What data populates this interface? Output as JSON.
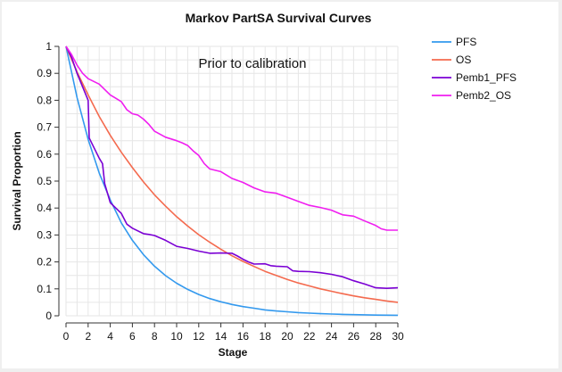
{
  "chart_data": {
    "type": "line",
    "title": "Markov PartSA Survival Curves",
    "annotation": "Prior to calibration",
    "xlabel": "Stage",
    "ylabel": "Survival Proportion",
    "xlim": [
      0,
      30
    ],
    "ylim": [
      0,
      1
    ],
    "xticks": [
      0,
      2,
      4,
      6,
      8,
      10,
      12,
      14,
      16,
      18,
      20,
      22,
      24,
      26,
      28,
      30
    ],
    "yticks": [
      0,
      0.1,
      0.2,
      0.3,
      0.4,
      0.5,
      0.6,
      0.7,
      0.8,
      0.9,
      1
    ],
    "ytick_labels": [
      "0",
      "0.1",
      "0.2",
      "0.3",
      "0.4",
      "0.5",
      "0.6",
      "0.7",
      "0.8",
      "0.9",
      "1"
    ],
    "grid": true,
    "legend_position": "right",
    "series": [
      {
        "name": "PFS",
        "color": "#3399ee",
        "x": [
          0,
          1,
          2,
          3,
          4,
          5,
          6,
          7,
          8,
          9,
          10,
          11,
          12,
          13,
          14,
          15,
          16,
          17,
          18,
          19,
          20,
          21,
          22,
          23,
          24,
          25,
          26,
          27,
          28,
          29,
          30
        ],
        "y": [
          1,
          0.81,
          0.655,
          0.53,
          0.43,
          0.345,
          0.28,
          0.227,
          0.184,
          0.149,
          0.121,
          0.098,
          0.079,
          0.064,
          0.052,
          0.042,
          0.034,
          0.028,
          0.022,
          0.018,
          0.015,
          0.012,
          0.01,
          0.008,
          0.0065,
          0.0053,
          0.0043,
          0.0035,
          0.0028,
          0.0023,
          0.0019
        ]
      },
      {
        "name": "OS",
        "color": "#f46a4e",
        "x": [
          0,
          1,
          2,
          3,
          4,
          5,
          6,
          7,
          8,
          9,
          10,
          11,
          12,
          13,
          14,
          15,
          16,
          17,
          18,
          19,
          20,
          21,
          22,
          23,
          24,
          25,
          26,
          27,
          28,
          29,
          30
        ],
        "y": [
          1,
          0.905,
          0.82,
          0.74,
          0.67,
          0.607,
          0.55,
          0.497,
          0.449,
          0.407,
          0.368,
          0.333,
          0.301,
          0.273,
          0.247,
          0.223,
          0.202,
          0.183,
          0.165,
          0.15,
          0.135,
          0.122,
          0.111,
          0.1,
          0.091,
          0.082,
          0.074,
          0.067,
          0.061,
          0.055,
          0.05
        ]
      },
      {
        "name": "Pemb1_PFS",
        "color": "#7b00d4",
        "x": [
          0,
          0.5,
          1,
          1.5,
          2,
          2.1,
          3,
          3.3,
          3.5,
          4,
          4.5,
          5,
          5.5,
          6,
          7,
          7.5,
          8,
          9,
          10,
          11,
          12,
          13,
          14,
          15,
          15.5,
          16,
          16.5,
          17,
          18,
          18.5,
          19,
          20,
          20.5,
          21,
          22,
          23,
          24,
          25,
          26,
          27,
          28,
          29,
          30
        ],
        "y": [
          1,
          0.96,
          0.9,
          0.85,
          0.8,
          0.66,
          0.585,
          0.565,
          0.49,
          0.42,
          0.4,
          0.38,
          0.34,
          0.325,
          0.305,
          0.302,
          0.298,
          0.28,
          0.258,
          0.25,
          0.24,
          0.232,
          0.233,
          0.232,
          0.222,
          0.21,
          0.2,
          0.192,
          0.193,
          0.186,
          0.184,
          0.182,
          0.167,
          0.165,
          0.164,
          0.16,
          0.154,
          0.145,
          0.13,
          0.118,
          0.104,
          0.102,
          0.104
        ]
      },
      {
        "name": "Pemb2_OS",
        "color": "#f01ef0",
        "x": [
          0,
          0.5,
          1,
          1.5,
          2,
          3,
          4,
          5,
          5.5,
          6,
          6.5,
          7,
          7.5,
          8,
          9,
          10,
          10.5,
          11,
          11.5,
          12,
          12.5,
          13,
          13.5,
          14,
          15,
          16,
          17,
          18,
          19,
          20,
          21,
          22,
          23,
          24,
          25,
          26,
          27,
          28,
          28.5,
          29,
          30
        ],
        "y": [
          1,
          0.97,
          0.93,
          0.9,
          0.88,
          0.86,
          0.82,
          0.795,
          0.765,
          0.75,
          0.745,
          0.73,
          0.71,
          0.685,
          0.663,
          0.65,
          0.642,
          0.632,
          0.612,
          0.595,
          0.565,
          0.545,
          0.54,
          0.535,
          0.51,
          0.495,
          0.475,
          0.46,
          0.455,
          0.44,
          0.425,
          0.41,
          0.402,
          0.392,
          0.375,
          0.37,
          0.352,
          0.335,
          0.323,
          0.318,
          0.318
        ]
      }
    ]
  }
}
